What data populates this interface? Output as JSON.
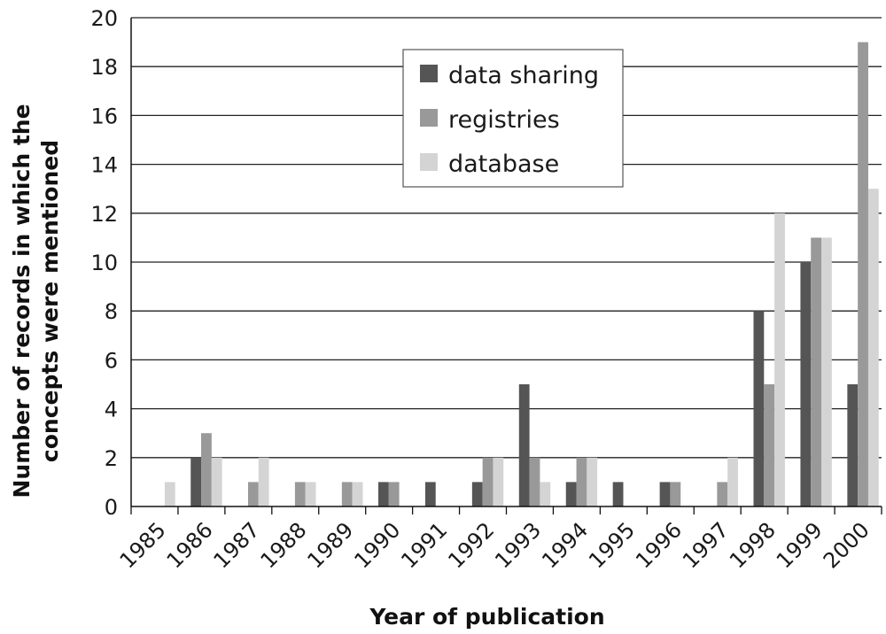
{
  "chart_data": {
    "type": "bar",
    "title": "",
    "xlabel": "Year of publication",
    "ylabel_line1": "Number of records in which the",
    "ylabel_line2": "concepts were mentioned",
    "ylim": [
      0,
      20
    ],
    "yticks": [
      0,
      2,
      4,
      6,
      8,
      10,
      12,
      14,
      16,
      18,
      20
    ],
    "grid": true,
    "legend_position": "top-center",
    "categories": [
      "1985",
      "1986",
      "1987",
      "1988",
      "1989",
      "1990",
      "1991",
      "1992",
      "1993",
      "1994",
      "1995",
      "1996",
      "1997",
      "1998",
      "1999",
      "2000"
    ],
    "series": [
      {
        "name": "data sharing",
        "color": "#555555",
        "values": [
          0,
          2,
          0,
          0,
          0,
          1,
          1,
          1,
          5,
          1,
          1,
          1,
          0,
          8,
          10,
          5
        ]
      },
      {
        "name": "registries",
        "color": "#999999",
        "values": [
          0,
          3,
          1,
          1,
          1,
          1,
          0,
          2,
          2,
          2,
          0,
          1,
          1,
          5,
          11,
          19
        ]
      },
      {
        "name": "database",
        "color": "#d4d4d4",
        "values": [
          1,
          2,
          2,
          1,
          1,
          0,
          0,
          2,
          1,
          2,
          0,
          0,
          2,
          12,
          11,
          13
        ]
      }
    ]
  }
}
